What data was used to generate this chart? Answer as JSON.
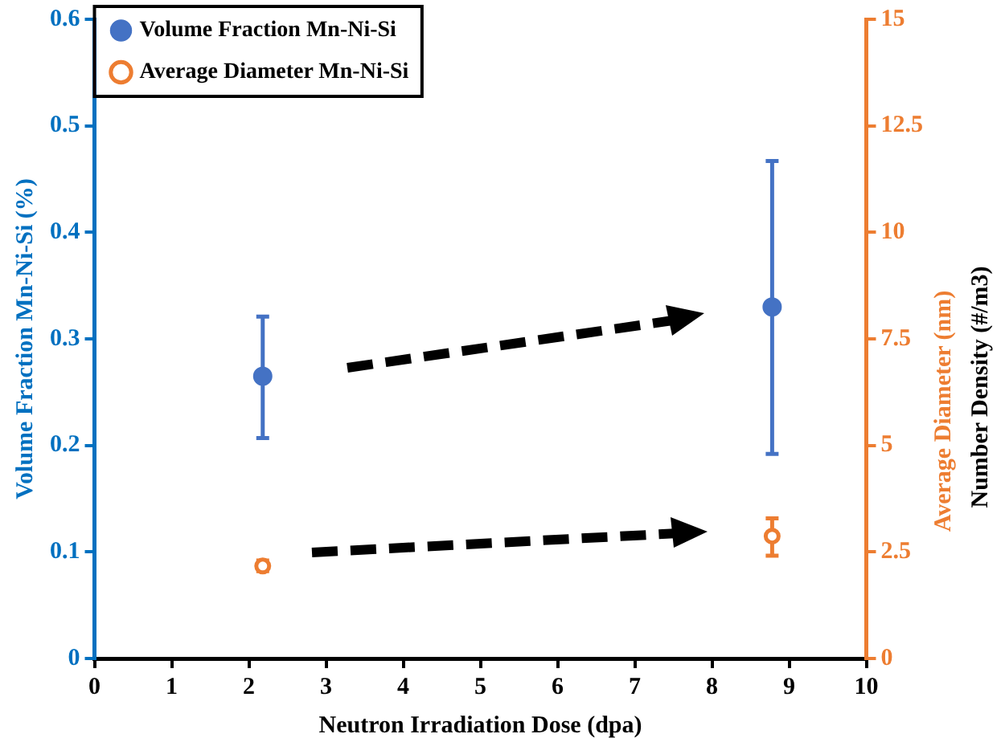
{
  "chart_data": {
    "type": "scatter",
    "xlabel": "Neutron Irradiation Dose (dpa)",
    "ylabel": "Volume Fraction Mn-Ni-Si (%)",
    "y2label": "Average Diameter (nm)",
    "annotations": [
      "Number Density (#/m3)"
    ],
    "x": [
      2.18,
      8.78
    ],
    "series": [
      {
        "name": "Volume Fraction Mn-Ni-Si",
        "color": "#4472c4",
        "values": [
          0.265,
          0.33
        ],
        "errors": [
          [
            0.207,
            0.321
          ],
          [
            0.192,
            0.467
          ]
        ],
        "marker": "circle"
      },
      {
        "name": "Average Diameter Mn-Ni-Si",
        "color": "#ed7d31",
        "axis": "y2",
        "values": [
          2.17,
          2.87
        ],
        "errors": [
          [
            2.05,
            2.3
          ],
          [
            2.41,
            3.29
          ]
        ],
        "marker": "circle"
      }
    ],
    "xlim": [
      0,
      10
    ],
    "xticks": [
      0,
      1,
      2,
      3,
      4,
      5,
      6,
      7,
      8,
      9,
      10
    ],
    "ylim": [
      0,
      0.6
    ],
    "yticks": [
      0,
      0.1,
      0.2,
      0.3,
      0.4,
      0.5,
      0.6
    ],
    "y2lim": [
      0,
      15
    ],
    "y2ticks": [
      0,
      2.5,
      5,
      7.5,
      10,
      12.5,
      15
    ],
    "grid": false,
    "legend": "top left"
  }
}
